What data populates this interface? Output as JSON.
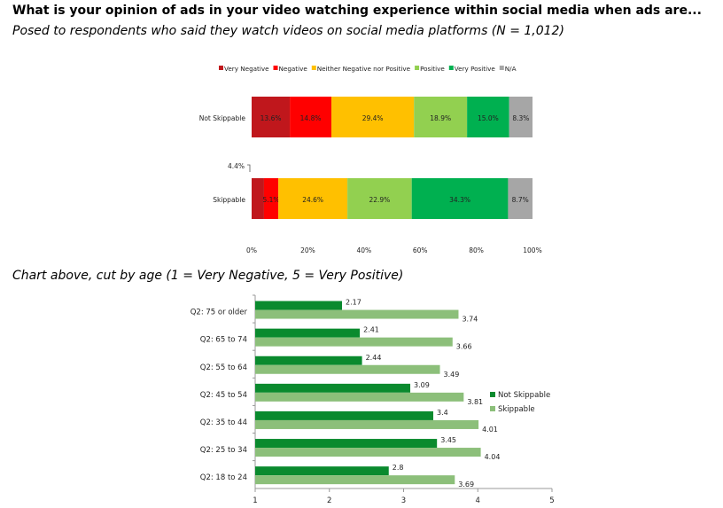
{
  "page": {
    "title": "What is your opinion of ads in your video watching experience within social media when ads are...",
    "subtitle": "Posed to respondents who said they watch videos on social media platforms (N = 1,012)",
    "subtitle2": "Chart above, cut by age (1 = Very Negative, 5 = Very Positive)"
  },
  "chart_data": [
    {
      "type": "bar",
      "orientation": "horizontal",
      "stacked": true,
      "legend_position": "top",
      "categories": [
        "Not Skippable",
        "Skippable"
      ],
      "series": [
        {
          "name": "Very Negative",
          "color": "#c0171c",
          "values": [
            13.6,
            4.4
          ],
          "labels": [
            "13.6%",
            "4.4%"
          ]
        },
        {
          "name": "Negative",
          "color": "#ff0000",
          "values": [
            14.8,
            5.1
          ],
          "labels": [
            "14.8%",
            "5.1%"
          ]
        },
        {
          "name": "Neither Negative nor Positive",
          "color": "#ffc000",
          "values": [
            29.4,
            24.6
          ],
          "labels": [
            "29.4%",
            "24.6%"
          ]
        },
        {
          "name": "Positive",
          "color": "#92d050",
          "values": [
            18.9,
            22.9
          ],
          "labels": [
            "18.9%",
            "22.9%"
          ]
        },
        {
          "name": "Very Positive",
          "color": "#00b050",
          "values": [
            15.0,
            34.3
          ],
          "labels": [
            "15.0%",
            "34.3%"
          ]
        },
        {
          "name": "N/A",
          "color": "#a6a6a6",
          "values": [
            8.3,
            8.7
          ],
          "labels": [
            "8.3%",
            "8.7%"
          ]
        }
      ],
      "xlim": [
        0,
        100
      ],
      "xticks": [
        "0%",
        "20%",
        "40%",
        "60%",
        "80%",
        "100%"
      ],
      "grid": false
    },
    {
      "type": "bar",
      "orientation": "horizontal",
      "legend_position": "right",
      "categories": [
        "Q2: 75 or older",
        "Q2: 65 to 74",
        "Q2: 55 to 64",
        "Q2: 45 to 54",
        "Q2: 35 to 44",
        "Q2: 25 to 34",
        "Q2: 18 to 24"
      ],
      "series": [
        {
          "name": "Not Skippable",
          "color": "#0a8a2e",
          "values": [
            2.17,
            2.41,
            2.44,
            3.09,
            3.4,
            3.45,
            2.8
          ],
          "labels": [
            "2.17",
            "2.41",
            "2.44",
            "3.09",
            "3.4",
            "3.45",
            "2.8"
          ]
        },
        {
          "name": "Skippable",
          "color": "#8cbf7a",
          "values": [
            3.74,
            3.66,
            3.49,
            3.81,
            4.01,
            4.04,
            3.69
          ],
          "labels": [
            "3.74",
            "3.66",
            "3.49",
            "3.81",
            "4.01",
            "4.04",
            "3.69"
          ]
        }
      ],
      "xlim": [
        1,
        5
      ],
      "xticks": [
        "1",
        "2",
        "3",
        "4",
        "5"
      ],
      "grid": false
    }
  ]
}
